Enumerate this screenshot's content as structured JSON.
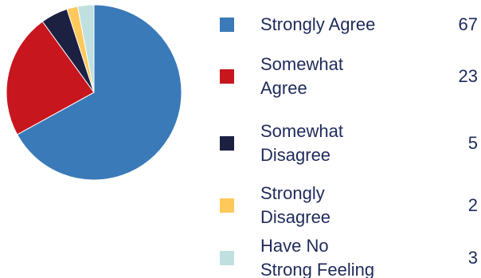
{
  "chart_data": {
    "type": "pie",
    "categories": [
      "Strongly Agree",
      "Somewhat Agree",
      "Somewhat Disagree",
      "Strongly Disagree",
      "Have No Strong Feeling"
    ],
    "values": [
      67,
      23,
      5,
      2,
      3
    ],
    "colors": [
      "#3a7ab8",
      "#c8161e",
      "#1c2142",
      "#ffc85a",
      "#bfe0df"
    ],
    "legend_placement": "right"
  },
  "legend": [
    {
      "label_lines": [
        "Strongly Agree"
      ],
      "value": "67"
    },
    {
      "label_lines": [
        "Somewhat",
        "Agree"
      ],
      "value": "23"
    },
    {
      "label_lines": [
        "Somewhat",
        "Disagree"
      ],
      "value": "5"
    },
    {
      "label_lines": [
        "Strongly",
        "Disagree"
      ],
      "value": "2"
    },
    {
      "label_lines": [
        "Have No",
        "Strong Feeling"
      ],
      "value": "3"
    }
  ]
}
